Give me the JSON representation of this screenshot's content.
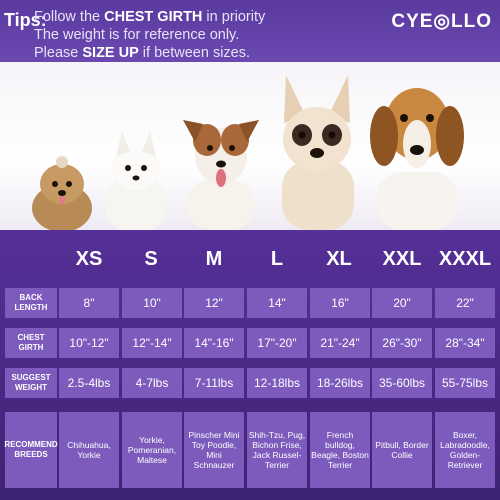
{
  "header": {
    "tips_label": "Tips:",
    "line1_pre": "Follow the ",
    "line1_bold": "CHEST GIRTH",
    "line1_post": " in priority",
    "line2": "The weight is for reference only.",
    "line3_pre": "Please ",
    "line3_bold": "SIZE UP",
    "line3_post": " if between sizes.",
    "brand": "CYE◎LLO"
  },
  "dogs": [
    "yorkie-photo",
    "pomeranian-photo",
    "jack-russell-photo",
    "french-bulldog-photo",
    "beagle-photo"
  ],
  "sizes": [
    "XS",
    "S",
    "M",
    "L",
    "XL",
    "XXL",
    "XXXL"
  ],
  "rows": [
    {
      "label": "BACK LENGTH",
      "values": [
        "8\"",
        "10\"",
        "12\"",
        "14\"",
        "16\"",
        "20\"",
        "22\""
      ]
    },
    {
      "label": "CHEST GIRTH",
      "values": [
        "10\"-12\"",
        "12\"-14\"",
        "14\"-16\"",
        "17\"-20\"",
        "21\"-24\"",
        "26\"-30\"",
        "28\"-34\""
      ]
    },
    {
      "label": "SUGGEST WEIGHT",
      "values": [
        "2.5-4lbs",
        "4-7lbs",
        "7-11lbs",
        "12-18lbs",
        "18-26lbs",
        "35-60lbs",
        "55-75lbs"
      ]
    },
    {
      "label": "RECOMMEND BREEDS",
      "values": [
        "Chihuahua, Yorkie",
        "Yorkie, Pomeranian, Maltese",
        "Pinscher Mini Toy Poodle, Mini Schnauzer",
        "Shih-Tzu, Pug, Bichon Frise, Jack Russel-Terrier",
        "French bulldog, Beagle, Boston Terrier",
        "Pitbull, Border Collie",
        "Boxer, Labradoodle, Golden-Retriever"
      ]
    }
  ],
  "colors": {
    "bg": "#4a2a86",
    "cell": "#7c5bbd"
  }
}
